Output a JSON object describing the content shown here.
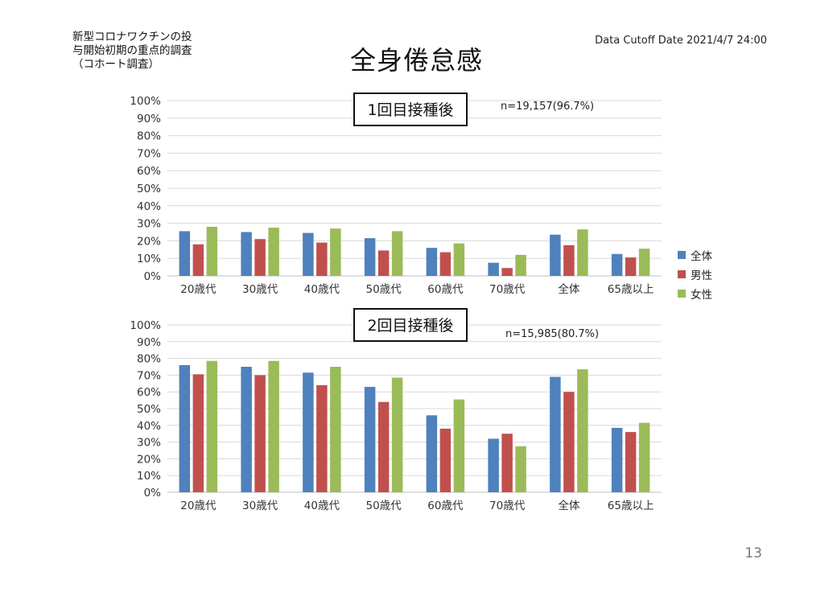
{
  "header": {
    "study_lines": [
      "新型コロナワクチンの投",
      "与開始初期の重点的調査",
      "（コホート調査）"
    ],
    "title": "全身倦怠感",
    "cutoff": "Data Cutoff Date 2021/4/7 24:00"
  },
  "page_number": "13",
  "colors": {
    "全体": "#4f81bd",
    "男性": "#c0504d",
    "女性": "#9bbb59"
  },
  "legend": [
    "全体",
    "男性",
    "女性"
  ],
  "chart_data": [
    {
      "type": "bar",
      "title": "1回目接種後",
      "annotation": "n=19,157(96.7%)",
      "categories": [
        "20歳代",
        "30歳代",
        "40歳代",
        "50歳代",
        "60歳代",
        "70歳代",
        "全体",
        "65歳以上"
      ],
      "y_ticks": [
        "0%",
        "10%",
        "20%",
        "30%",
        "40%",
        "50%",
        "60%",
        "70%",
        "80%",
        "90%",
        "100%"
      ],
      "ylim": [
        0,
        100
      ],
      "grid": true,
      "legend_position": "right",
      "series": [
        {
          "name": "全体",
          "values": [
            25.5,
            25,
            24.5,
            21.5,
            16,
            7.5,
            23.5,
            12.5
          ]
        },
        {
          "name": "男性",
          "values": [
            18,
            21,
            19,
            14.5,
            13.5,
            4.5,
            17.5,
            10.5
          ]
        },
        {
          "name": "女性",
          "values": [
            28,
            27.5,
            27,
            25.5,
            18.5,
            12,
            26.5,
            15.5
          ]
        }
      ]
    },
    {
      "type": "bar",
      "title": "2回目接種後",
      "annotation": "n=15,985(80.7%)",
      "categories": [
        "20歳代",
        "30歳代",
        "40歳代",
        "50歳代",
        "60歳代",
        "70歳代",
        "全体",
        "65歳以上"
      ],
      "y_ticks": [
        "0%",
        "10%",
        "20%",
        "30%",
        "40%",
        "50%",
        "60%",
        "70%",
        "80%",
        "90%",
        "100%"
      ],
      "ylim": [
        0,
        100
      ],
      "grid": true,
      "legend_position": "right",
      "series": [
        {
          "name": "全体",
          "values": [
            76,
            75,
            71.5,
            63,
            46,
            32,
            69,
            38.5
          ]
        },
        {
          "name": "男性",
          "values": [
            70.5,
            70,
            64,
            54,
            38,
            35,
            60,
            36
          ]
        },
        {
          "name": "女性",
          "values": [
            78.5,
            78.5,
            75,
            68.5,
            55.5,
            27.5,
            73.5,
            41.5
          ]
        }
      ]
    }
  ]
}
